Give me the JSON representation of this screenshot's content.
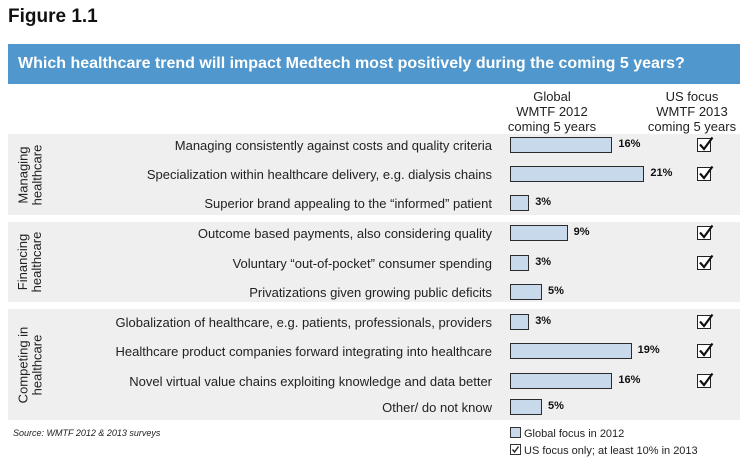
{
  "figure_label": "Figure 1.1",
  "chart_data": {
    "type": "bar",
    "title": "Which healthcare trend will impact Medtech most positively during the coming 5 years?",
    "columns": {
      "global": [
        "Global",
        "WMTF  2012",
        "coming 5 years"
      ],
      "us": [
        "US focus",
        "WMTF 2013",
        "coming 5 years"
      ]
    },
    "groups": [
      {
        "label": "Managing healthcare",
        "label_lines": [
          "Managing",
          "healthcare"
        ]
      },
      {
        "label": "Financing healthcare",
        "label_lines": [
          "Financing",
          "healthcare"
        ]
      },
      {
        "label": "Competing in healthcare",
        "label_lines": [
          "Competing in",
          "healthcare"
        ]
      }
    ],
    "categories": [
      "Managing consistently against costs and quality criteria",
      "Specialization within healthcare delivery, e.g. dialysis chains",
      "Superior brand appealing to the “informed” patient",
      "Outcome based payments, also considering quality",
      "Voluntary “out-of-pocket” consumer spending",
      "Privatizations given growing public deficits",
      "Globalization of healthcare, e.g. patients, professionals, providers",
      "Healthcare product companies forward integrating into healthcare",
      "Novel virtual value chains exploiting knowledge and data better",
      "Other/ do not know"
    ],
    "category_group": [
      0,
      0,
      0,
      1,
      1,
      1,
      2,
      2,
      2,
      2
    ],
    "series": [
      {
        "name": "Global focus in 2012",
        "values": [
          16,
          21,
          3,
          9,
          3,
          5,
          3,
          19,
          16,
          5
        ]
      },
      {
        "name": "US focus only; at least 10% in 2013",
        "values": [
          true,
          true,
          false,
          true,
          true,
          false,
          true,
          true,
          true,
          false
        ]
      }
    ],
    "value_labels": [
      "16%",
      "21%",
      "3%",
      "9%",
      "3%",
      "5%",
      "3%",
      "19%",
      "16%",
      "5%"
    ],
    "source": "Source: WMTF 2012 & 2013 surveys",
    "legend": [
      "Global focus in 2012",
      "US focus only; at least 10% in 2013"
    ],
    "bar_color": "#c7d9ea",
    "banner_color": "#4f97cc",
    "group_bg_color": "#efefef"
  }
}
